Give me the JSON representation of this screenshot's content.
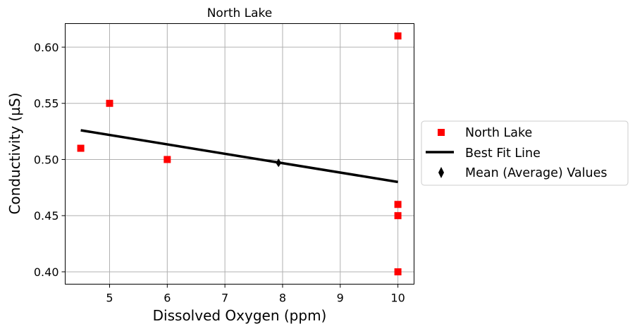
{
  "chart_data": {
    "type": "scatter",
    "title": "North Lake",
    "xlabel": "Dissolved Oxygen (ppm)",
    "ylabel": "Conductivity (µS)",
    "xlim": [
      4.23,
      10.28
    ],
    "ylim": [
      0.389,
      0.621
    ],
    "xticks": [
      5,
      6,
      7,
      8,
      9,
      10
    ],
    "yticks": [
      0.4,
      0.45,
      0.5,
      0.55,
      0.6
    ],
    "xtick_labels": [
      "5",
      "6",
      "7",
      "8",
      "9",
      "10"
    ],
    "ytick_labels": [
      "0.40",
      "0.45",
      "0.50",
      "0.55",
      "0.60"
    ],
    "grid": true,
    "legend_position": "outside-right",
    "series": [
      {
        "name": "North Lake",
        "kind": "scatter",
        "marker": "square",
        "color": "#ff0000",
        "points": [
          {
            "x": 4.5,
            "y": 0.51
          },
          {
            "x": 5.0,
            "y": 0.55
          },
          {
            "x": 6.0,
            "y": 0.5
          },
          {
            "x": 10.0,
            "y": 0.61
          },
          {
            "x": 10.0,
            "y": 0.46
          },
          {
            "x": 10.0,
            "y": 0.45
          },
          {
            "x": 10.0,
            "y": 0.4
          }
        ]
      },
      {
        "name": "Best Fit Line",
        "kind": "line",
        "color": "#000000",
        "points": [
          {
            "x": 4.5,
            "y": 0.526
          },
          {
            "x": 10.0,
            "y": 0.48
          }
        ]
      },
      {
        "name": "Mean (Average) Values",
        "kind": "scatter",
        "marker": "diamond",
        "color": "#000000",
        "points": [
          {
            "x": 7.93,
            "y": 0.497
          }
        ]
      }
    ]
  }
}
